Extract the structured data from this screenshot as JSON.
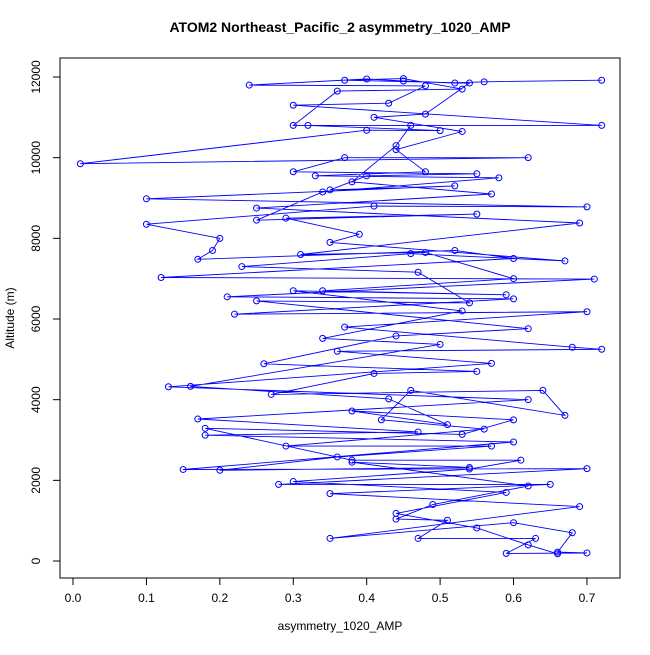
{
  "chart_data": {
    "type": "line",
    "title": "ATOM2 Northeast_Pacific_2 asymmetry_1020_AMP",
    "x_label": "asymmetry_1020_AMP",
    "y_label": "Altitude (m)",
    "color": "#0000ff",
    "marker": "circle",
    "xlim": [
      -0.0177,
      0.745
    ],
    "ylim": [
      -421,
      12471
    ],
    "xticks": [
      {
        "value": 0,
        "label": "0.0"
      },
      0.1,
      0.2,
      0.3,
      0.4,
      0.5,
      0.6,
      0.7
    ],
    "yticks": [
      0,
      2000,
      4000,
      6000,
      8000,
      10000,
      12000
    ],
    "x": [
      0.72,
      0.56,
      0.52,
      0.45,
      0.4,
      0.24,
      0.48,
      0.43,
      0.3,
      0.72,
      0.32,
      0.5,
      0.4,
      0.01,
      0.62,
      0.37,
      0.3,
      0.55,
      0.4,
      0.35,
      0.52,
      0.1,
      0.7,
      0.41,
      0.1,
      0.2,
      0.19,
      0.17,
      0.52,
      0.6,
      0.12,
      0.71,
      0.21,
      0.6,
      0.22,
      0.7,
      0.37,
      0.68,
      0.72,
      0.36,
      0.57,
      0.13,
      0.62,
      0.17,
      0.47,
      0.18,
      0.6,
      0.15,
      0.7,
      0.28,
      0.65,
      0.35,
      0.69,
      0.35,
      0.6,
      0.68,
      0.66,
      0.7,
      0.59,
      0.63,
      0.47,
      0.51,
      0.44,
      0.49,
      0.62,
      0.38,
      0.54,
      0.2,
      0.36,
      0.57,
      0.29,
      0.56,
      0.42,
      0.46,
      0.67,
      0.64,
      0.27,
      0.41,
      0.55,
      0.26,
      0.44,
      0.62,
      0.25,
      0.54,
      0.47,
      0.23,
      0.46,
      0.67,
      0.35,
      0.39,
      0.29,
      0.55,
      0.25,
      0.34,
      0.58,
      0.33,
      0.48,
      0.44,
      0.53,
      0.41,
      0.48,
      0.54,
      0.37,
      0.45,
      0.53,
      0.36,
      0.3,
      0.46,
      0.44,
      0.38,
      0.57,
      0.25,
      0.69,
      0.31,
      0.48,
      0.6,
      0.34,
      0.59,
      0.3,
      0.53,
      0.34,
      0.5,
      0.16,
      0.43,
      0.51,
      0.38,
      0.6,
      0.53,
      0.18,
      0.38,
      0.61,
      0.54,
      0.3,
      0.59,
      0.44,
      0.55,
      0.62,
      0.66
    ],
    "values": [
      11920,
      11880,
      11850,
      11900,
      11950,
      11800,
      11780,
      11350,
      11300,
      10800,
      10800,
      10670,
      10680,
      9850,
      10000,
      10000,
      9650,
      9600,
      9550,
      9200,
      9300,
      8980,
      8780,
      8800,
      8350,
      8000,
      7700,
      7480,
      7700,
      7500,
      7030,
      6990,
      6550,
      6500,
      6120,
      6180,
      5800,
      5300,
      5250,
      5200,
      4900,
      4320,
      4000,
      3520,
      3200,
      3120,
      2950,
      2270,
      2290,
      1900,
      1900,
      1670,
      1350,
      560,
      950,
      700,
      220,
      200,
      190,
      560,
      560,
      1010,
      1040,
      1400,
      1860,
      2450,
      2320,
      2250,
      2580,
      2850,
      2850,
      3270,
      3500,
      4230,
      3610,
      4230,
      4130,
      4650,
      4700,
      4890,
      5580,
      5760,
      6450,
      6400,
      7160,
      7300,
      7620,
      7440,
      7900,
      8100,
      8500,
      8600,
      8450,
      9150,
      9500,
      9550,
      9650,
      10200,
      10650,
      11000,
      11080,
      11850,
      11920,
      11960,
      11700,
      11650,
      10800,
      10800,
      10300,
      9400,
      9100,
      8750,
      8380,
      7600,
      7650,
      7000,
      6700,
      6600,
      6700,
      6200,
      5520,
      5370,
      4330,
      4020,
      3380,
      3720,
      3500,
      3140,
      3290,
      2500,
      2500,
      2280,
      1970,
      1700,
      1180,
      820,
      400,
      180
    ]
  }
}
